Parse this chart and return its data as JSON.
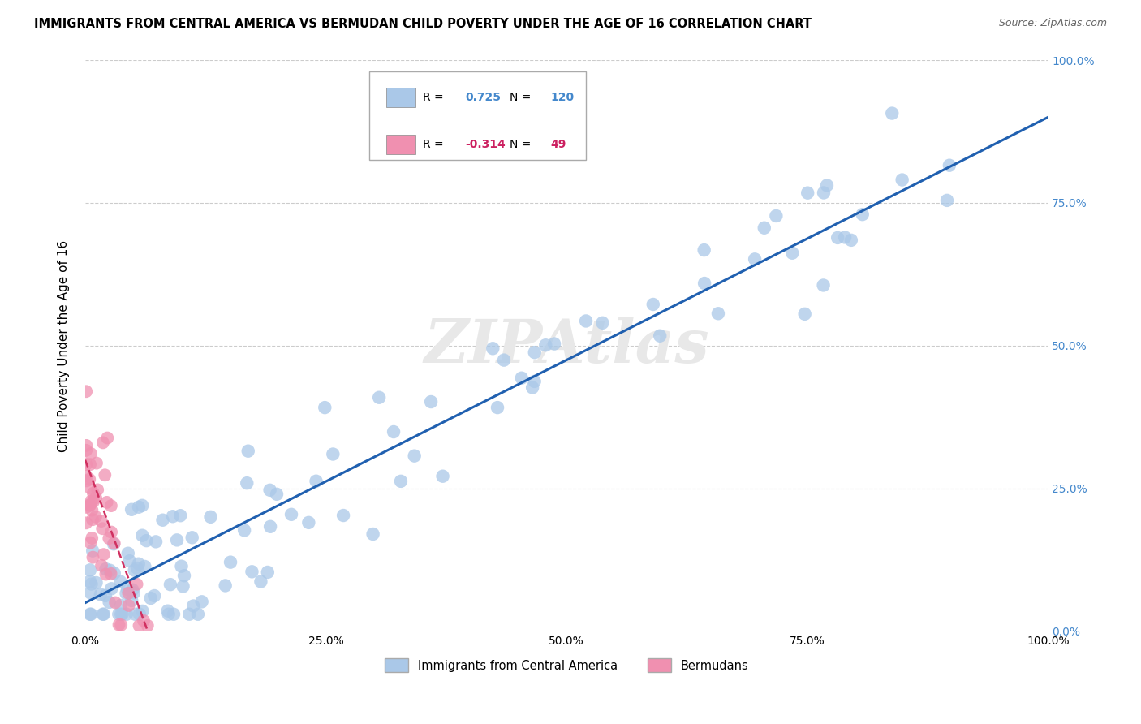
{
  "title": "IMMIGRANTS FROM CENTRAL AMERICA VS BERMUDAN CHILD POVERTY UNDER THE AGE OF 16 CORRELATION CHART",
  "source": "Source: ZipAtlas.com",
  "ylabel": "Child Poverty Under the Age of 16",
  "xlim": [
    0,
    1.0
  ],
  "ylim": [
    0,
    1.0
  ],
  "xticks": [
    0.0,
    0.25,
    0.5,
    0.75,
    1.0
  ],
  "yticks": [
    0.0,
    0.25,
    0.5,
    0.75,
    1.0
  ],
  "xticklabels": [
    "0.0%",
    "25.0%",
    "50.0%",
    "75.0%",
    "100.0%"
  ],
  "yticklabels_right": [
    "0.0%",
    "25.0%",
    "50.0%",
    "75.0%",
    "100.0%"
  ],
  "blue_R": 0.725,
  "blue_N": 120,
  "pink_R": -0.314,
  "pink_N": 49,
  "blue_color": "#aac8e8",
  "pink_color": "#f090b0",
  "blue_line_color": "#2060b0",
  "pink_line_color": "#d03060",
  "legend_blue_label": "Immigrants from Central America",
  "legend_pink_label": "Bermudans",
  "watermark": "ZIPAtlas",
  "background_color": "#ffffff",
  "grid_color": "#cccccc",
  "right_tick_color": "#4488cc",
  "blue_line_x0": 0.0,
  "blue_line_y0": 0.05,
  "blue_line_x1": 1.0,
  "blue_line_y1": 0.9,
  "pink_line_x0": 0.0,
  "pink_line_y0": 0.3,
  "pink_line_x1": 0.065,
  "pink_line_y1": 0.0
}
